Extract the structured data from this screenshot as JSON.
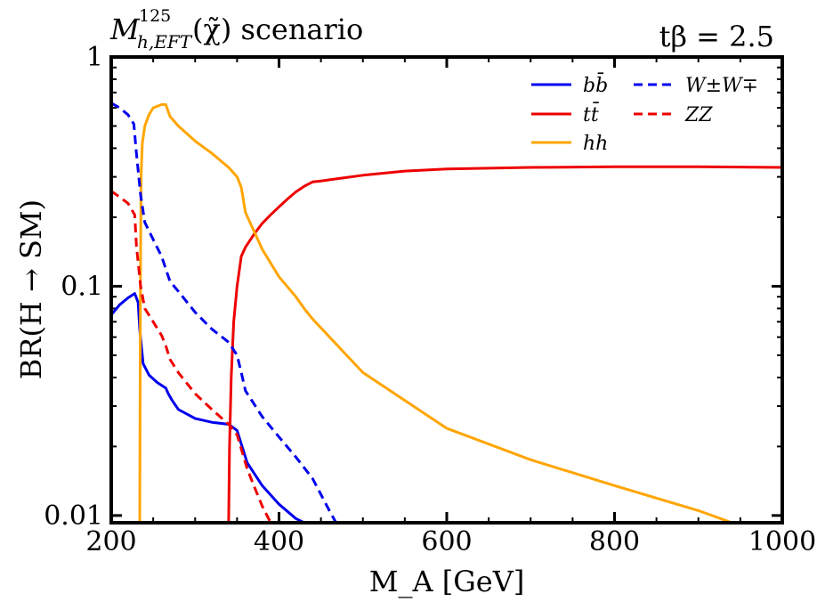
{
  "header": {
    "title_main": "M",
    "title_sub": "h,EFT",
    "title_sup": "125",
    "title_args": "(χ̃) scenario",
    "param_label": "tβ = 2.5"
  },
  "chart_data": {
    "type": "line",
    "title": "M^125_h,EFT(χ̃) scenario",
    "annotation": "tβ = 2.5",
    "xlabel": "M_A [GeV]",
    "ylabel": "BR(H → SM)",
    "xlim": [
      200,
      1000
    ],
    "ylim": [
      0.0093,
      1
    ],
    "yscale": "log",
    "xticks": [
      200,
      400,
      600,
      800,
      1000
    ],
    "xtick_labels": [
      "200",
      "400",
      "600",
      "800",
      "1000"
    ],
    "yticks": [
      0.01,
      0.1,
      1
    ],
    "ytick_labels": [
      "0.01",
      "0.1",
      "1"
    ],
    "legend_position": "top-right",
    "series": [
      {
        "name": "bb̄",
        "color": "#0000ee",
        "style": "solid",
        "x": [
          200,
          210,
          220,
          228,
          232,
          234,
          238,
          245,
          255,
          265,
          268,
          272,
          280,
          300,
          320,
          340,
          350,
          356,
          362,
          380,
          400,
          420,
          430
        ],
        "y": [
          0.075,
          0.083,
          0.089,
          0.093,
          0.085,
          0.065,
          0.046,
          0.041,
          0.038,
          0.036,
          0.034,
          0.032,
          0.029,
          0.0265,
          0.0255,
          0.025,
          0.0235,
          0.02,
          0.017,
          0.0135,
          0.0112,
          0.0097,
          0.0093
        ]
      },
      {
        "name": "tt̄",
        "color": "#ee0000",
        "style": "solid",
        "x": [
          340,
          341,
          343,
          346,
          350,
          355,
          360,
          370,
          380,
          390,
          400,
          410,
          420,
          430,
          440,
          450,
          500,
          550,
          600,
          700,
          800,
          900,
          1000
        ],
        "y": [
          0.0093,
          0.02,
          0.04,
          0.07,
          0.1,
          0.135,
          0.148,
          0.168,
          0.188,
          0.205,
          0.222,
          0.24,
          0.258,
          0.273,
          0.285,
          0.288,
          0.305,
          0.318,
          0.325,
          0.33,
          0.332,
          0.332,
          0.33
        ]
      },
      {
        "name": "hh",
        "color": "#ffa500",
        "style": "solid",
        "x": [
          234,
          234.8,
          235.5,
          237,
          240,
          245,
          250,
          260,
          265,
          270,
          280,
          300,
          320,
          340,
          350,
          355,
          360,
          380,
          400,
          420,
          430,
          440,
          500,
          600,
          700,
          800,
          900,
          940
        ],
        "y": [
          0.0093,
          0.1,
          0.3,
          0.42,
          0.5,
          0.56,
          0.6,
          0.62,
          0.62,
          0.55,
          0.5,
          0.43,
          0.38,
          0.33,
          0.3,
          0.27,
          0.21,
          0.145,
          0.11,
          0.09,
          0.08,
          0.072,
          0.042,
          0.024,
          0.0175,
          0.0135,
          0.0105,
          0.0093
        ]
      },
      {
        "name": "W±W∓",
        "color": "#0000ee",
        "style": "dashed",
        "x": [
          200,
          210,
          220,
          227,
          230,
          235,
          240,
          250,
          260,
          270,
          280,
          300,
          320,
          340,
          350,
          355,
          360,
          380,
          400,
          420,
          440,
          460,
          468
        ],
        "y": [
          0.63,
          0.6,
          0.56,
          0.51,
          0.38,
          0.25,
          0.19,
          0.16,
          0.135,
          0.105,
          0.095,
          0.077,
          0.065,
          0.057,
          0.05,
          0.042,
          0.035,
          0.027,
          0.022,
          0.018,
          0.0145,
          0.0105,
          0.0093
        ]
      },
      {
        "name": "ZZ",
        "color": "#ee0000",
        "style": "dashed",
        "x": [
          200,
          210,
          220,
          228,
          230,
          235,
          240,
          250,
          260,
          265,
          270,
          280,
          300,
          320,
          340,
          350,
          356,
          362,
          370,
          380,
          390
        ],
        "y": [
          0.26,
          0.245,
          0.23,
          0.205,
          0.15,
          0.1,
          0.08,
          0.07,
          0.061,
          0.055,
          0.048,
          0.042,
          0.034,
          0.029,
          0.025,
          0.0225,
          0.019,
          0.016,
          0.0135,
          0.011,
          0.0093
        ]
      }
    ]
  }
}
